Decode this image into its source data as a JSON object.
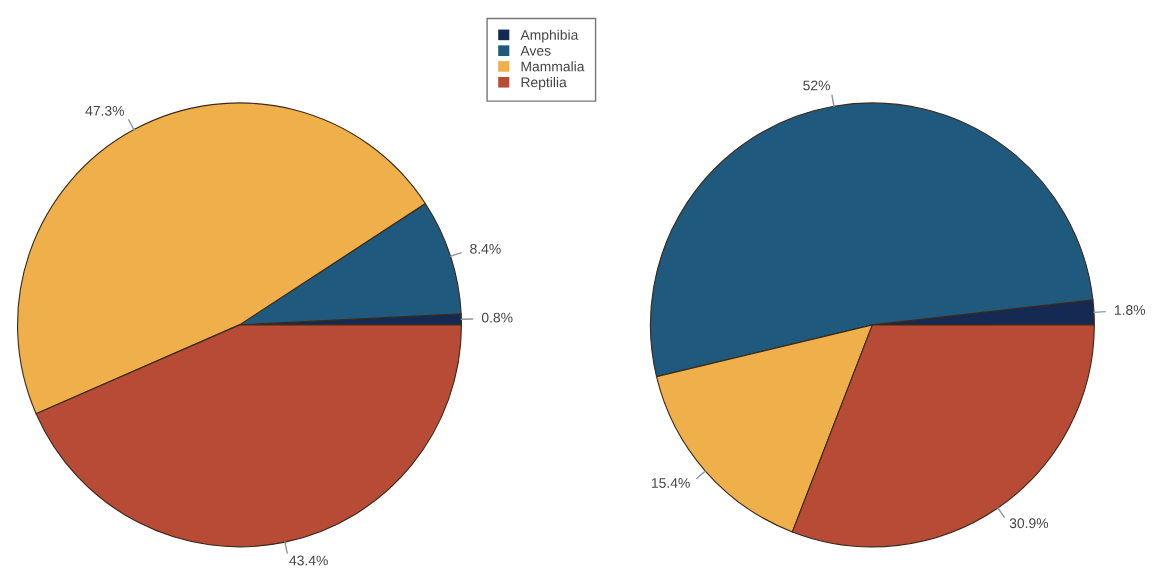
{
  "chart_data": [
    {
      "type": "pie",
      "categories": [
        "Amphibia",
        "Aves",
        "Mammalia",
        "Reptilia"
      ],
      "values": [
        0.8,
        8.4,
        47.3,
        43.4
      ],
      "colors": [
        "#152a52",
        "#1f5a7e",
        "#efb04b",
        "#b84b35"
      ],
      "value_labels": [
        "0.8%",
        "8.4%",
        "47.3%",
        "43.4%"
      ],
      "legend": "top right"
    },
    {
      "type": "pie",
      "categories": [
        null,
        null,
        null,
        null
      ],
      "values": [
        1.8,
        52,
        15.4,
        30.9
      ],
      "colors": [
        "#152a52",
        "#1f5a7e",
        "#efb04b",
        "#b84b35"
      ],
      "value_labels": [
        "1.8%",
        "52%",
        "15.4%",
        "30.9%"
      ]
    }
  ]
}
